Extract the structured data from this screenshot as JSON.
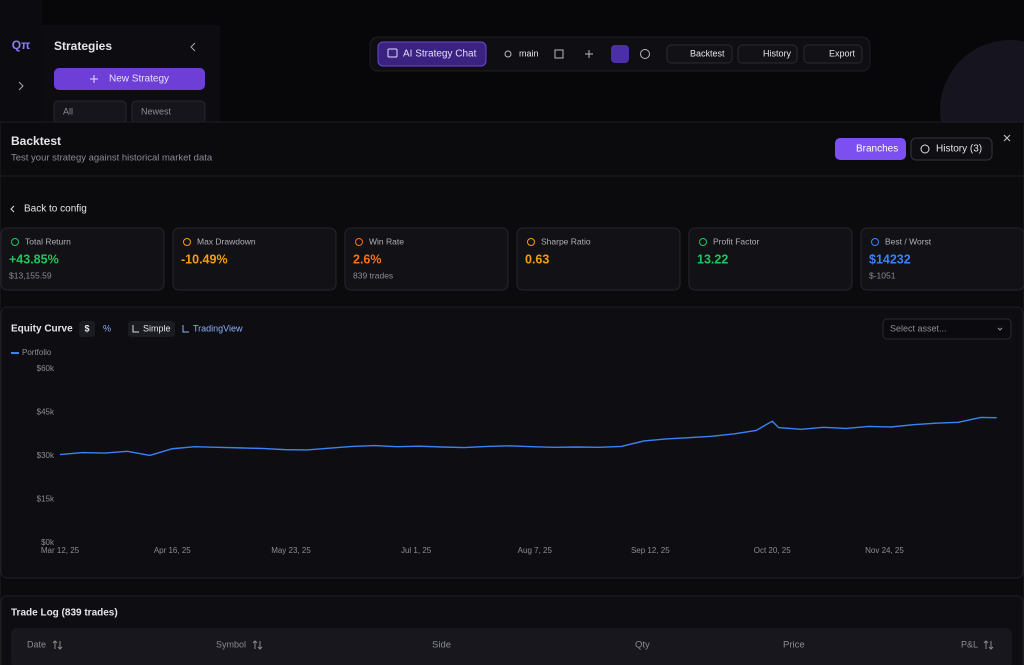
{
  "sidebar": {
    "logo": "Qπ",
    "title": "Strategies",
    "new_button": "New Strategy",
    "filter": "All",
    "sort": "Newest"
  },
  "toolbar": {
    "chat": "AI Strategy Chat",
    "branch": "main",
    "backtest": "Backtest",
    "history": "History",
    "export": "Export"
  },
  "panel": {
    "title": "Backtest",
    "subtitle": "Test your strategy against historical market data",
    "branches": "Branches",
    "history": "History (3)",
    "back": "Back to config"
  },
  "metrics": [
    {
      "label": "Total Return",
      "value": "+43.85%",
      "sub": "$13,155.59"
    },
    {
      "label": "Max Drawdown",
      "value": "-10.49%"
    },
    {
      "label": "Win Rate",
      "value": "2.6%",
      "sub": "839 trades"
    },
    {
      "label": "Sharpe Ratio",
      "value": "0.63"
    },
    {
      "label": "Profit Factor",
      "value": "13.22"
    },
    {
      "label": "Best / Worst",
      "value": "$14232",
      "sub": "$-1051"
    }
  ],
  "chart_controls": {
    "currency": "$",
    "percent": "%",
    "simple": "Simple",
    "tradingview": "TradingView",
    "select": "Select asset..."
  },
  "chart_data": {
    "type": "line",
    "title": "Equity Curve",
    "x": [
      "2025-03-12",
      "2025-03-19",
      "2025-03-26",
      "2025-04-02",
      "2025-04-09",
      "2025-04-16",
      "2025-04-23",
      "2025-04-30",
      "2025-05-07",
      "2025-05-14",
      "2025-05-21",
      "2025-05-28",
      "2025-06-04",
      "2025-06-11",
      "2025-06-18",
      "2025-06-25",
      "2025-07-02",
      "2025-07-09",
      "2025-07-16",
      "2025-07-23",
      "2025-07-30",
      "2025-08-06",
      "2025-08-13",
      "2025-08-20",
      "2025-08-27",
      "2025-09-03",
      "2025-09-10",
      "2025-09-17",
      "2025-09-24",
      "2025-10-01",
      "2025-10-08",
      "2025-10-15",
      "2025-10-20",
      "2025-10-22",
      "2025-10-29",
      "2025-11-05",
      "2025-11-12",
      "2025-11-19",
      "2025-11-26",
      "2025-12-03",
      "2025-12-10",
      "2025-12-17",
      "2025-12-24",
      "2025-12-29"
    ],
    "series": [
      {
        "name": "Portfolio",
        "color": "#3b82f6",
        "values": [
          30500,
          31200,
          31000,
          31600,
          30200,
          32500,
          33200,
          33000,
          32800,
          32600,
          32200,
          32100,
          32700,
          33300,
          33600,
          33200,
          33400,
          33100,
          32900,
          33300,
          33500,
          33200,
          33000,
          33100,
          33000,
          33300,
          35200,
          35900,
          36300,
          36800,
          37600,
          38800,
          42000,
          39800,
          39200,
          39900,
          39500,
          40200,
          40000,
          40800,
          41300,
          41600,
          43300,
          43200
        ]
      }
    ],
    "xlim": [
      "2025-03-12",
      "2025-12-30"
    ],
    "xticks": [
      {
        "value": "2025-03-12",
        "label": "Mar 12, 25"
      },
      {
        "value": "2025-04-16",
        "label": "Apr 16, 25"
      },
      {
        "value": "2025-05-23",
        "label": "May 23, 25"
      },
      {
        "value": "2025-07-01",
        "label": "Jul 1, 25"
      },
      {
        "value": "2025-08-07",
        "label": "Aug 7, 25"
      },
      {
        "value": "2025-09-12",
        "label": "Sep 12, 25"
      },
      {
        "value": "2025-10-20",
        "label": "Oct 20, 25"
      },
      {
        "value": "2025-11-24",
        "label": "Nov 24, 25"
      }
    ],
    "ylim": [
      0,
      60000
    ],
    "yticks": [
      {
        "value": 0,
        "label": "$0k"
      },
      {
        "value": 15000,
        "label": "$15k"
      },
      {
        "value": 30000,
        "label": "$30k"
      },
      {
        "value": 45000,
        "label": "$45k"
      },
      {
        "value": 60000,
        "label": "$60k"
      }
    ],
    "grid": false
  },
  "trade_log": {
    "title": "Trade Log (839 trades)",
    "columns": [
      "Date",
      "Symbol",
      "Side",
      "Qty",
      "Price",
      "P&L"
    ]
  }
}
